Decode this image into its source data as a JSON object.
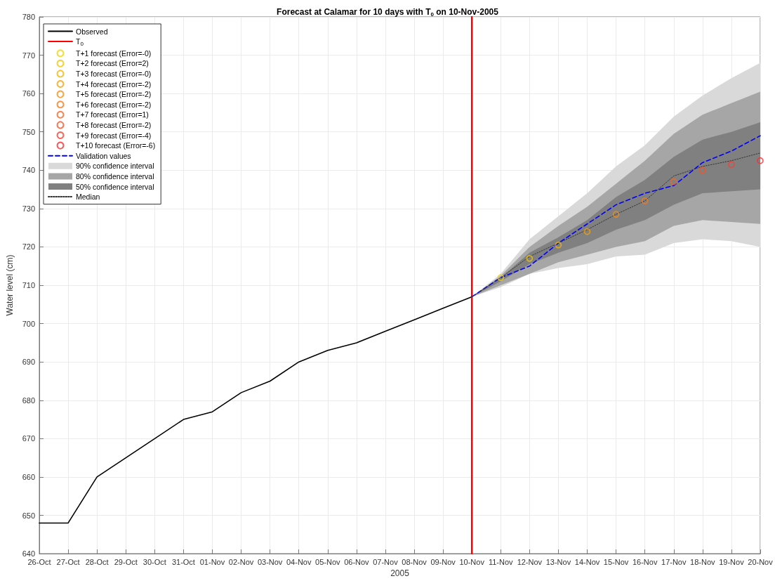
{
  "chart_data": {
    "type": "line",
    "title": "Forecast at Calamar for 10 days with T$_{0}$ on 10-Nov-2005",
    "xlabel": "2005",
    "ylabel": "Water level (cm)",
    "xlim": [
      "2005-10-26",
      "2005-11-20"
    ],
    "xticks": [
      {
        "value": "2005-10-26",
        "label": "26-Oct"
      },
      {
        "value": "2005-10-27",
        "label": "27-Oct"
      },
      {
        "value": "2005-10-28",
        "label": "28-Oct"
      },
      {
        "value": "2005-10-29",
        "label": "29-Oct"
      },
      {
        "value": "2005-10-30",
        "label": "30-Oct"
      },
      {
        "value": "2005-10-31",
        "label": "31-Oct"
      },
      {
        "value": "2005-11-01",
        "label": "01-Nov"
      },
      {
        "value": "2005-11-02",
        "label": "02-Nov"
      },
      {
        "value": "2005-11-03",
        "label": "03-Nov"
      },
      {
        "value": "2005-11-04",
        "label": "04-Nov"
      },
      {
        "value": "2005-11-05",
        "label": "05-Nov"
      },
      {
        "value": "2005-11-06",
        "label": "06-Nov"
      },
      {
        "value": "2005-11-07",
        "label": "07-Nov"
      },
      {
        "value": "2005-11-08",
        "label": "08-Nov"
      },
      {
        "value": "2005-11-09",
        "label": "09-Nov"
      },
      {
        "value": "2005-11-10",
        "label": "10-Nov"
      },
      {
        "value": "2005-11-11",
        "label": "11-Nov"
      },
      {
        "value": "2005-11-12",
        "label": "12-Nov"
      },
      {
        "value": "2005-11-13",
        "label": "13-Nov"
      },
      {
        "value": "2005-11-14",
        "label": "14-Nov"
      },
      {
        "value": "2005-11-15",
        "label": "15-Nov"
      },
      {
        "value": "2005-11-16",
        "label": "16-Nov"
      },
      {
        "value": "2005-11-17",
        "label": "17-Nov"
      },
      {
        "value": "2005-11-18",
        "label": "18-Nov"
      },
      {
        "value": "2005-11-19",
        "label": "19-Nov"
      },
      {
        "value": "2005-11-20",
        "label": "20-Nov"
      }
    ],
    "ylim": [
      640,
      780
    ],
    "yticks": [
      640,
      650,
      660,
      670,
      680,
      690,
      700,
      710,
      720,
      730,
      740,
      750,
      760,
      770,
      780
    ],
    "grid": true,
    "legend": "top left",
    "marker": "none",
    "series": [
      {
        "name": "Observed",
        "type": "line",
        "color": "#000000",
        "line_style": "solid",
        "x": [
          "2005-10-26",
          "2005-10-27",
          "2005-10-28",
          "2005-10-29",
          "2005-10-30",
          "2005-10-31",
          "2005-11-01",
          "2005-11-02",
          "2005-11-03",
          "2005-11-04",
          "2005-11-05",
          "2005-11-06",
          "2005-11-07",
          "2005-11-08",
          "2005-11-09",
          "2005-11-10"
        ],
        "values": [
          648,
          648,
          660,
          665,
          670,
          675,
          677,
          682,
          685,
          690,
          693,
          695,
          698,
          701,
          704,
          707
        ]
      },
      {
        "name": "T$_{0}$",
        "type": "line",
        "color": "#ff0000",
        "line_style": "solid",
        "x": [
          "2005-11-10",
          "2005-11-10"
        ],
        "values": [
          640,
          780
        ]
      },
      {
        "name": "T+1 forecast (Error=-0)",
        "type": "scatter",
        "marker": "circle",
        "color": "#f2d500",
        "x": [
          "2005-11-11"
        ],
        "values": [
          712
        ]
      },
      {
        "name": "T+2 forecast (Error=2)",
        "type": "scatter",
        "marker": "circle",
        "color": "#f5c400",
        "x": [
          "2005-11-12"
        ],
        "values": [
          717
        ]
      },
      {
        "name": "T+3 forecast (Error=-0)",
        "type": "scatter",
        "marker": "circle",
        "color": "#f7b300",
        "x": [
          "2005-11-13"
        ],
        "values": [
          720.5
        ]
      },
      {
        "name": "T+4 forecast (Error=-2)",
        "type": "scatter",
        "marker": "circle",
        "color": "#f9a000",
        "x": [
          "2005-11-14"
        ],
        "values": [
          724
        ]
      },
      {
        "name": "T+5 forecast (Error=-2)",
        "type": "scatter",
        "marker": "circle",
        "color": "#fa8c10",
        "x": [
          "2005-11-15"
        ],
        "values": [
          728.5
        ]
      },
      {
        "name": "T+6 forecast (Error=-2)",
        "type": "scatter",
        "marker": "circle",
        "color": "#fb7818",
        "x": [
          "2005-11-16"
        ],
        "values": [
          732
        ]
      },
      {
        "name": "T+7 forecast (Error=1)",
        "type": "scatter",
        "marker": "circle",
        "color": "#fc6420",
        "x": [
          "2005-11-17"
        ],
        "values": [
          737
        ]
      },
      {
        "name": "T+8 forecast (Error=-2)",
        "type": "scatter",
        "marker": "circle",
        "color": "#fd5024",
        "x": [
          "2005-11-18"
        ],
        "values": [
          740
        ]
      },
      {
        "name": "T+9 forecast (Error=-4)",
        "type": "scatter",
        "marker": "circle",
        "color": "#fe3c28",
        "x": [
          "2005-11-19"
        ],
        "values": [
          741.5
        ]
      },
      {
        "name": "T+10 forecast (Error=-6)",
        "type": "scatter",
        "marker": "circle",
        "color": "#ff282a",
        "x": [
          "2005-11-20"
        ],
        "values": [
          742.5
        ]
      },
      {
        "name": "Validation values",
        "type": "line",
        "color": "#0000ff",
        "line_style": "dashed",
        "x": [
          "2005-11-10",
          "2005-11-11",
          "2005-11-12",
          "2005-11-13",
          "2005-11-14",
          "2005-11-15",
          "2005-11-16",
          "2005-11-17",
          "2005-11-18",
          "2005-11-19",
          "2005-11-20"
        ],
        "values": [
          707,
          712,
          715,
          721,
          726,
          731,
          734,
          736,
          742,
          745,
          749
        ]
      },
      {
        "name": "90% confidence interval",
        "type": "area",
        "color": "#d9d9d9",
        "x": [
          "2005-11-10",
          "2005-11-11",
          "2005-11-12",
          "2005-11-13",
          "2005-11-14",
          "2005-11-15",
          "2005-11-16",
          "2005-11-17",
          "2005-11-18",
          "2005-11-19",
          "2005-11-20"
        ],
        "values": [
          null,
          null,
          null,
          null,
          null,
          null,
          null,
          null,
          null,
          null,
          null
        ],
        "lower": [
          707,
          709.5,
          713,
          714.5,
          715.5,
          717.5,
          718,
          721,
          722,
          721.5,
          720
        ],
        "upper": [
          707,
          713,
          722,
          728,
          734,
          741,
          746.5,
          754,
          759.5,
          764,
          768
        ]
      },
      {
        "name": "80% confidence interval",
        "type": "area",
        "color": "#a6a6a6",
        "x": [
          "2005-11-10",
          "2005-11-11",
          "2005-11-12",
          "2005-11-13",
          "2005-11-14",
          "2005-11-15",
          "2005-11-16",
          "2005-11-17",
          "2005-11-18",
          "2005-11-19",
          "2005-11-20"
        ],
        "values": [
          null,
          null,
          null,
          null,
          null,
          null,
          null,
          null,
          null,
          null,
          null
        ],
        "lower": [
          707,
          710,
          713,
          716,
          718,
          720,
          721.5,
          725.5,
          727,
          726.5,
          726
        ],
        "upper": [
          707,
          712.5,
          720,
          725.5,
          730.5,
          736.5,
          742.5,
          749.5,
          754.5,
          757.5,
          760.5
        ]
      },
      {
        "name": "50% confidence interval",
        "type": "area",
        "color": "#808080",
        "x": [
          "2005-11-10",
          "2005-11-11",
          "2005-11-12",
          "2005-11-13",
          "2005-11-14",
          "2005-11-15",
          "2005-11-16",
          "2005-11-17",
          "2005-11-18",
          "2005-11-19",
          "2005-11-20"
        ],
        "values": [
          null,
          null,
          null,
          null,
          null,
          null,
          null,
          null,
          null,
          null,
          null
        ],
        "lower": [
          707,
          711,
          715.5,
          718.5,
          721,
          724.5,
          727,
          731,
          734,
          734.5,
          735
        ],
        "upper": [
          707,
          712,
          718.5,
          722.5,
          727,
          733,
          737.5,
          743.5,
          748,
          750,
          752.5
        ]
      },
      {
        "name": "Median",
        "type": "line",
        "color": "#333333",
        "line_style": "dotted",
        "x": [
          "2005-11-10",
          "2005-11-11",
          "2005-11-12",
          "2005-11-13",
          "2005-11-14",
          "2005-11-15",
          "2005-11-16",
          "2005-11-17",
          "2005-11-18",
          "2005-11-19",
          "2005-11-20"
        ],
        "values": [
          707,
          712,
          717.5,
          721,
          724.5,
          728.5,
          732,
          738.5,
          741,
          742.5,
          744.5
        ]
      }
    ]
  }
}
